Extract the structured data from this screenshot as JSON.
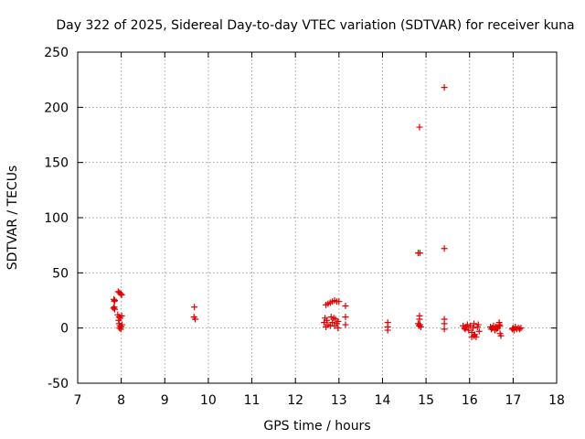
{
  "chart_data": {
    "type": "scatter",
    "title": "Day 322 of 2025, Sidereal Day-to-day VTEC variation (SDTVAR) for receiver kuna",
    "xlabel": "GPS time / hours",
    "ylabel": "SDTVAR / TECUs",
    "xlim": [
      7,
      18
    ],
    "ylim": [
      -50,
      250
    ],
    "xticks": [
      "7",
      "8",
      "9",
      "10",
      "11",
      "12",
      "13",
      "14",
      "15",
      "16",
      "17",
      "18"
    ],
    "yticks": [
      "-50",
      "0",
      "50",
      "100",
      "150",
      "200",
      "250"
    ],
    "grid": true,
    "marker": "+",
    "color": "#e00000",
    "series": [
      {
        "name": "SDTVAR",
        "points": [
          [
            7.83,
            26
          ],
          [
            7.85,
            25
          ],
          [
            7.84,
            24
          ],
          [
            7.82,
            18
          ],
          [
            7.85,
            17
          ],
          [
            7.84,
            19
          ],
          [
            7.93,
            33
          ],
          [
            7.96,
            32
          ],
          [
            7.99,
            31
          ],
          [
            8.01,
            30
          ],
          [
            7.92,
            12
          ],
          [
            7.95,
            10
          ],
          [
            7.98,
            9
          ],
          [
            8.01,
            11
          ],
          [
            7.94,
            7
          ],
          [
            7.95,
            4
          ],
          [
            7.97,
            2
          ],
          [
            8.0,
            1
          ],
          [
            7.96,
            0
          ],
          [
            8.02,
            3
          ],
          [
            7.99,
            -1
          ],
          [
            9.68,
            19
          ],
          [
            9.67,
            10
          ],
          [
            9.7,
            8
          ],
          [
            12.68,
            9
          ],
          [
            12.72,
            7
          ],
          [
            12.66,
            5
          ],
          [
            12.75,
            3
          ],
          [
            12.7,
            1
          ],
          [
            12.8,
            2
          ],
          [
            12.7,
            21
          ],
          [
            12.75,
            22
          ],
          [
            12.8,
            23
          ],
          [
            12.85,
            24
          ],
          [
            12.9,
            25
          ],
          [
            12.95,
            24
          ],
          [
            13.0,
            24
          ],
          [
            12.82,
            10
          ],
          [
            12.88,
            9
          ],
          [
            12.92,
            8
          ],
          [
            12.98,
            6
          ],
          [
            12.85,
            5
          ],
          [
            12.95,
            4
          ],
          [
            12.9,
            2
          ],
          [
            12.98,
            0
          ],
          [
            13.15,
            20
          ],
          [
            13.15,
            10
          ],
          [
            13.15,
            3
          ],
          [
            14.12,
            5
          ],
          [
            14.12,
            1
          ],
          [
            14.12,
            -2
          ],
          [
            14.85,
            182
          ],
          [
            14.82,
            68
          ],
          [
            14.86,
            68
          ],
          [
            14.85,
            11
          ],
          [
            14.85,
            8
          ],
          [
            14.82,
            4
          ],
          [
            14.86,
            3
          ],
          [
            14.84,
            2
          ],
          [
            14.88,
            1
          ],
          [
            15.42,
            218
          ],
          [
            15.42,
            72
          ],
          [
            15.42,
            8
          ],
          [
            15.42,
            4
          ],
          [
            15.42,
            -1
          ],
          [
            15.85,
            2
          ],
          [
            15.88,
            0
          ],
          [
            15.9,
            -1
          ],
          [
            15.92,
            1
          ],
          [
            15.95,
            3
          ],
          [
            15.98,
            -2
          ],
          [
            16.02,
            2
          ],
          [
            16.05,
            -4
          ],
          [
            16.08,
            0
          ],
          [
            16.1,
            4
          ],
          [
            16.12,
            -6
          ],
          [
            16.15,
            -8
          ],
          [
            16.18,
            1
          ],
          [
            16.2,
            3
          ],
          [
            16.22,
            -3
          ],
          [
            16.1,
            -7
          ],
          [
            16.05,
            -8
          ],
          [
            16.48,
            1
          ],
          [
            16.5,
            -1
          ],
          [
            16.52,
            0
          ],
          [
            16.55,
            2
          ],
          [
            16.58,
            -2
          ],
          [
            16.6,
            1
          ],
          [
            16.62,
            -1
          ],
          [
            16.65,
            0
          ],
          [
            16.68,
            3
          ],
          [
            16.7,
            2
          ],
          [
            16.72,
            -7
          ],
          [
            16.7,
            -5
          ],
          [
            16.68,
            5
          ],
          [
            16.98,
            -1
          ],
          [
            17.0,
            0
          ],
          [
            17.02,
            -2
          ],
          [
            17.05,
            1
          ],
          [
            17.08,
            -1
          ],
          [
            17.12,
            0
          ],
          [
            17.15,
            -1
          ],
          [
            17.18,
            0
          ]
        ]
      }
    ]
  }
}
